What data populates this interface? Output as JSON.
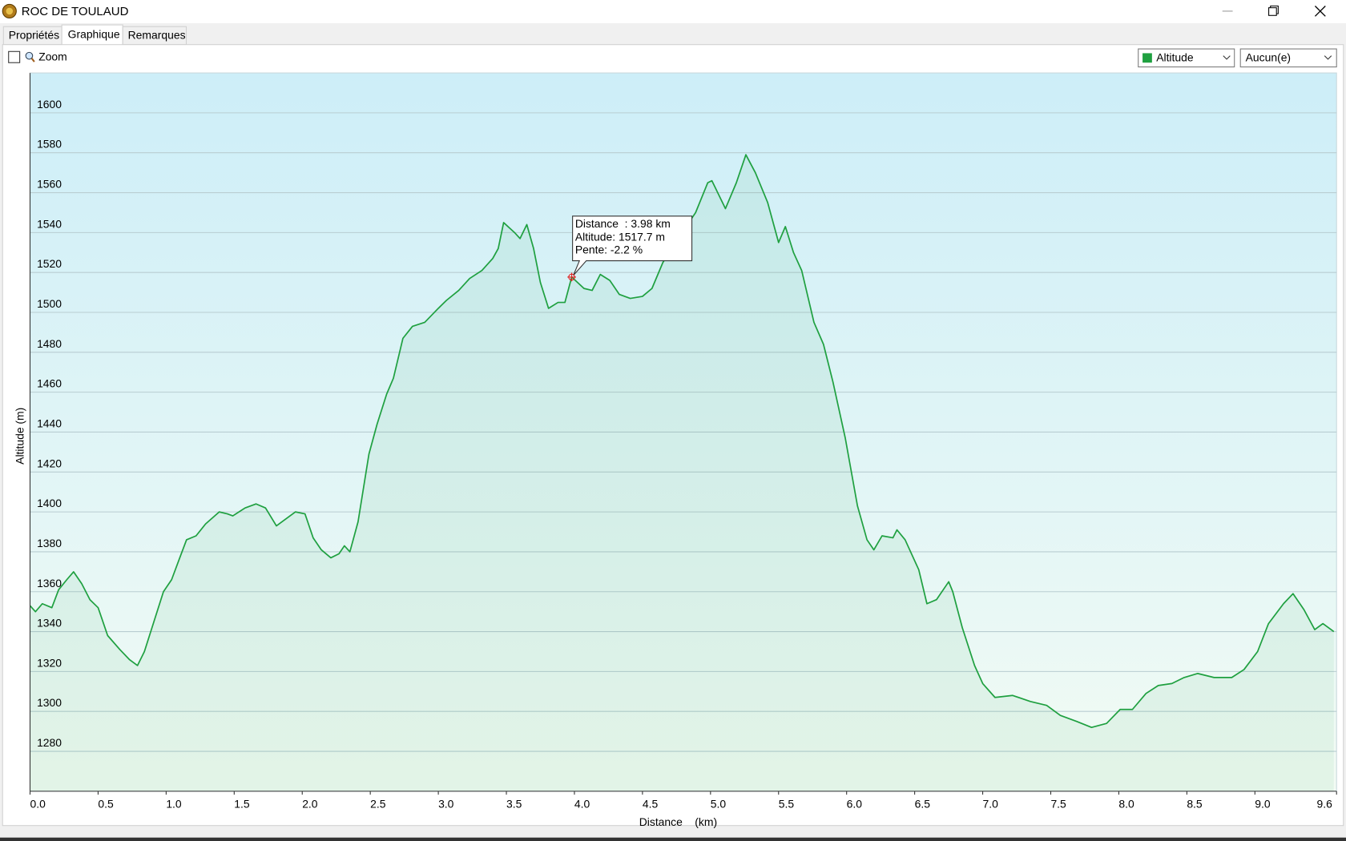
{
  "window": {
    "title": "ROC DE TOULAUD"
  },
  "tabs": [
    "Propriétés",
    "Graphique",
    "Remarques"
  ],
  "toolbar": {
    "zoom_label": "Zoom",
    "dropdowns": [
      "Altitude",
      "Aucun(e)"
    ]
  },
  "chart_data": {
    "type": "area",
    "x_label": "Distance    (km)",
    "y_label": "Altitude (m)",
    "color": "#1fa040",
    "grid": true,
    "xlim": [
      0,
      9.6
    ],
    "ylim": [
      1260,
      1620
    ],
    "xticks": [
      {
        "value": 0,
        "label": "0.0"
      },
      0.5,
      {
        "value": 1,
        "label": "1.0"
      },
      1.5,
      {
        "value": 2,
        "label": "2.0"
      },
      2.5,
      {
        "value": 3,
        "label": "3.0"
      },
      3.5,
      {
        "value": 4,
        "label": "4.0"
      },
      4.5,
      {
        "value": 5,
        "label": "5.0"
      },
      5.5,
      {
        "value": 6,
        "label": "6.0"
      },
      6.5,
      {
        "value": 7,
        "label": "7.0"
      },
      7.5,
      {
        "value": 8,
        "label": "8.0"
      },
      8.5,
      {
        "value": 9,
        "label": "9.0"
      },
      9.6
    ],
    "yticks": [
      1280,
      1300,
      1320,
      1340,
      1360,
      1380,
      1400,
      1420,
      1440,
      1460,
      1480,
      1500,
      1520,
      1540,
      1560,
      1580,
      1600
    ],
    "x": [
      0,
      0.04,
      0.09,
      0.16,
      0.21,
      0.27,
      0.32,
      0.38,
      0.44,
      0.5,
      0.57,
      0.66,
      0.73,
      0.79,
      0.84,
      0.91,
      0.98,
      1.04,
      1.1,
      1.15,
      1.22,
      1.29,
      1.39,
      1.45,
      1.49,
      1.58,
      1.66,
      1.73,
      1.81,
      1.87,
      1.95,
      2.02,
      2.08,
      2.14,
      2.21,
      2.27,
      2.31,
      2.35,
      2.41,
      2.49,
      2.55,
      2.62,
      2.67,
      2.74,
      2.81,
      2.9,
      3.0,
      3.06,
      3.15,
      3.23,
      3.32,
      3.4,
      3.44,
      3.48,
      3.56,
      3.6,
      3.65,
      3.7,
      3.75,
      3.81,
      3.88,
      3.93,
      3.98,
      4.07,
      4.13,
      4.19,
      4.26,
      4.33,
      4.41,
      4.5,
      4.57,
      4.65,
      4.76,
      4.89,
      4.98,
      5.01,
      5.11,
      5.19,
      5.26,
      5.33,
      5.42,
      5.5,
      5.55,
      5.61,
      5.67,
      5.76,
      5.83,
      5.9,
      5.99,
      6.08,
      6.15,
      6.2,
      6.26,
      6.34,
      6.37,
      6.43,
      6.53,
      6.59,
      6.66,
      6.75,
      6.78,
      6.85,
      6.94,
      7.0,
      7.09,
      7.22,
      7.35,
      7.47,
      7.57,
      7.69,
      7.8,
      7.91,
      8.01,
      8.1,
      8.2,
      8.29,
      8.39,
      8.48,
      8.58,
      8.7,
      8.83,
      8.92,
      9.02,
      9.1,
      9.21,
      9.28,
      9.36,
      9.44,
      9.5,
      9.58
    ],
    "values": [
      1353,
      1350,
      1354,
      1352,
      1361,
      1366,
      1370,
      1364,
      1356,
      1352,
      1338,
      1331,
      1326,
      1323,
      1330,
      1345,
      1360,
      1366,
      1377,
      1386,
      1388,
      1394,
      1400,
      1399,
      1398,
      1402,
      1404,
      1402,
      1393,
      1396,
      1400,
      1399,
      1387,
      1381,
      1377,
      1379,
      1383,
      1380,
      1395,
      1429,
      1444,
      1459,
      1467,
      1487,
      1493,
      1495,
      1502,
      1506,
      1511,
      1517,
      1521,
      1527,
      1532,
      1545,
      1540,
      1537,
      1544,
      1532,
      1515,
      1502,
      1505,
      1505,
      1517.7,
      1512,
      1511,
      1519,
      1516,
      1509,
      1507,
      1508,
      1512,
      1525,
      1537,
      1550,
      1565,
      1566,
      1552,
      1565,
      1579,
      1570,
      1555,
      1535,
      1543,
      1530,
      1521,
      1495,
      1484,
      1465,
      1437,
      1403,
      1386,
      1381,
      1388,
      1387,
      1391,
      1386,
      1371,
      1354,
      1356,
      1365,
      1360,
      1342,
      1323,
      1314,
      1307,
      1308,
      1305,
      1303,
      1298,
      1295,
      1292,
      1294,
      1301,
      1301,
      1309,
      1313,
      1314,
      1317,
      1319,
      1317,
      1317,
      1321,
      1330,
      1344,
      1354,
      1359,
      1351,
      1341,
      1344,
      1340
    ],
    "cursor": {
      "x": 3.98,
      "value": 1517.7,
      "lines": [
        "Distance  : 3.98 km",
        "Altitude: 1517.7 m",
        "Pente: -2.2 %"
      ]
    }
  }
}
